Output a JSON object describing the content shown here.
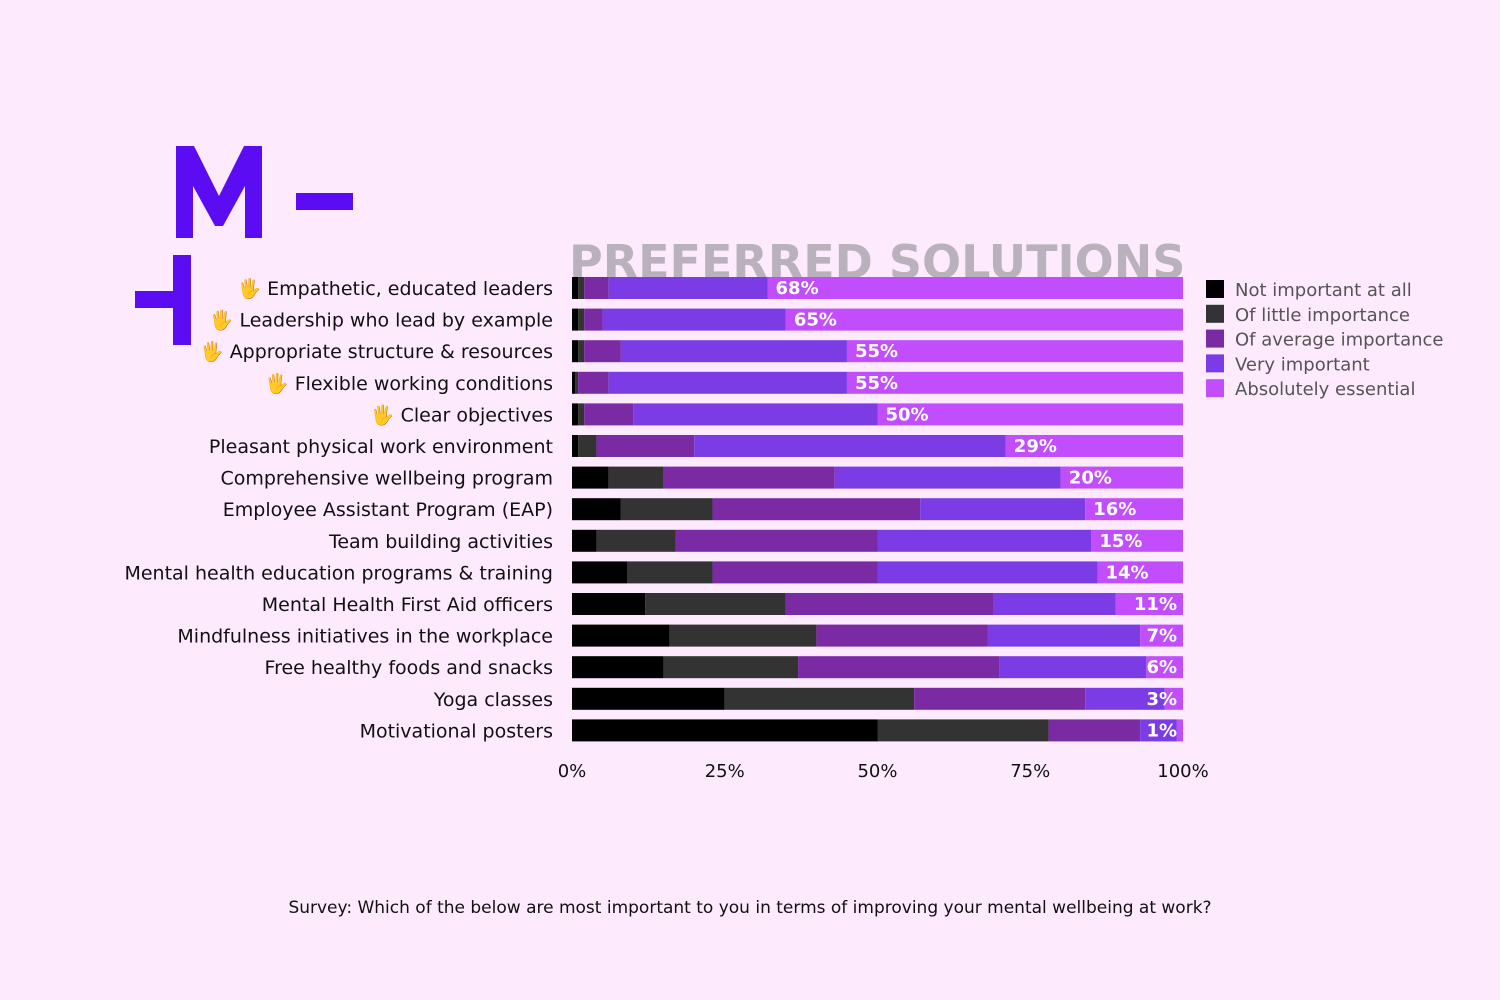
{
  "brand": {
    "accent_color": "#5b0cf2"
  },
  "caption": "Survey: Which of the below are most important to you in terms of improving your mental wellbeing at work?",
  "chart_data": {
    "type": "bar",
    "orientation": "horizontal",
    "stacked": "percent",
    "title": "PREFERRED SOLUTIONS",
    "xlim": [
      0,
      100
    ],
    "x_ticks": [
      "0%",
      "25%",
      "50%",
      "75%",
      "100%"
    ],
    "grid": false,
    "legend_position": "right",
    "highlight_icon": "raised-hand-icon",
    "highlight_emoji": "🖐",
    "categories": [
      {
        "label": "Empathetic, educated leaders",
        "highlight": true
      },
      {
        "label": "Leadership who lead by example",
        "highlight": true
      },
      {
        "label": "Appropriate structure & resources",
        "highlight": true
      },
      {
        "label": "Flexible working conditions",
        "highlight": true
      },
      {
        "label": "Clear objectives",
        "highlight": true
      },
      {
        "label": "Pleasant physical work environment",
        "highlight": false
      },
      {
        "label": "Comprehensive wellbeing program",
        "highlight": false
      },
      {
        "label": "Employee Assistant Program (EAP)",
        "highlight": false
      },
      {
        "label": "Team building activities",
        "highlight": false
      },
      {
        "label": "Mental health education programs & training",
        "highlight": false
      },
      {
        "label": "Mental Health First Aid officers",
        "highlight": false
      },
      {
        "label": "Mindfulness initiatives in the workplace",
        "highlight": false
      },
      {
        "label": "Free healthy foods and snacks",
        "highlight": false
      },
      {
        "label": "Yoga classes",
        "highlight": false
      },
      {
        "label": "Motivational posters",
        "highlight": false
      }
    ],
    "series": [
      {
        "name": "Not important at all",
        "color": "#000000",
        "values": [
          1,
          1,
          1,
          0.5,
          1,
          1,
          6,
          8,
          4,
          9,
          12,
          16,
          15,
          25,
          50
        ]
      },
      {
        "name": "Of little importance",
        "color": "#333333",
        "values": [
          1,
          1,
          1,
          0.5,
          1,
          3,
          9,
          15,
          13,
          14,
          23,
          24,
          22,
          31,
          28
        ]
      },
      {
        "name": "Of average importance",
        "color": "#7a2aa3",
        "values": [
          4,
          3,
          6,
          5,
          8,
          16,
          28,
          34,
          33,
          27,
          34,
          28,
          33,
          28,
          15
        ]
      },
      {
        "name": "Very important",
        "color": "#7b3ce6",
        "values": [
          26,
          30,
          37,
          39,
          40,
          51,
          37,
          27,
          35,
          36,
          20,
          25,
          24,
          13,
          6
        ]
      },
      {
        "name": "Absolutely essential",
        "color": "#c24dfd",
        "values": [
          68,
          65,
          55,
          55,
          50,
          29,
          20,
          16,
          15,
          14,
          11,
          7,
          6,
          3,
          1
        ]
      }
    ],
    "data_labels": [
      "68%",
      "65%",
      "55%",
      "55%",
      "50%",
      "29%",
      "20%",
      "16%",
      "15%",
      "14%",
      "11%",
      "7%",
      "6%",
      "3%",
      "1%"
    ]
  }
}
